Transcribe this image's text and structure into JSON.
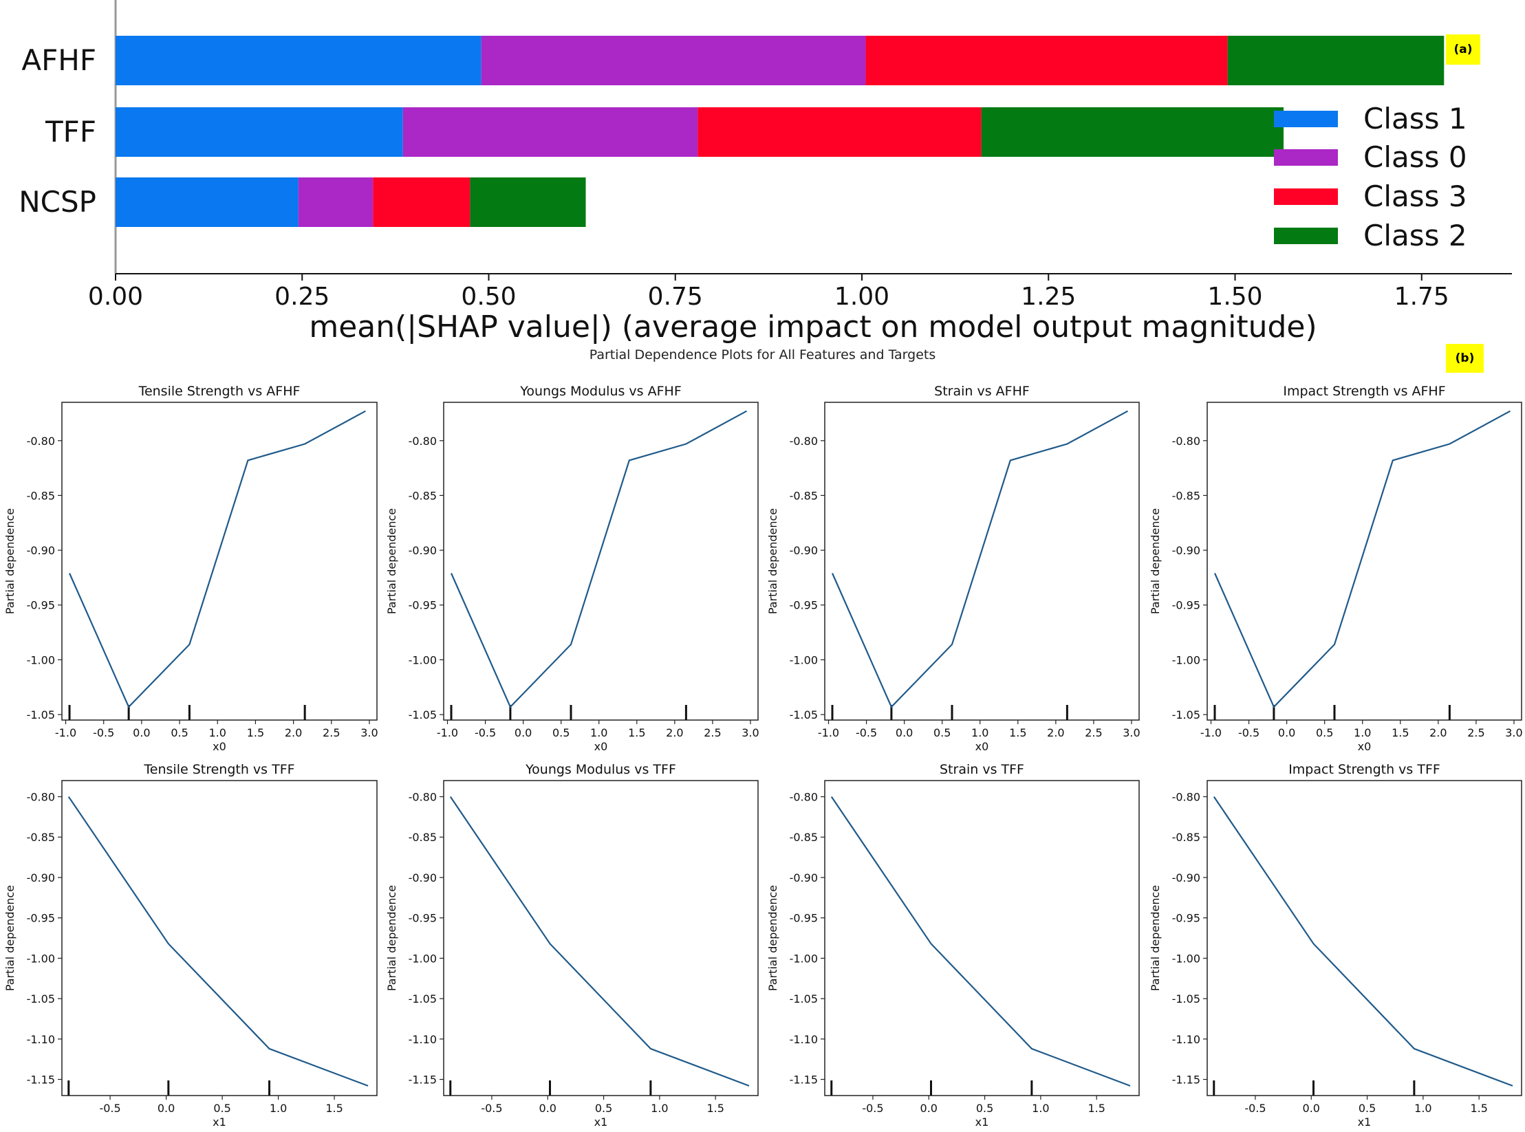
{
  "chart_data": [
    {
      "type": "bar",
      "stacked": true,
      "orientation": "horizontal",
      "panel_label": "(a)",
      "categories": [
        "AFHF",
        "TFF",
        "NCSP"
      ],
      "series": [
        {
          "name": "Class 1",
          "color": "#0a78f0",
          "values": [
            0.49,
            0.385,
            0.245
          ]
        },
        {
          "name": "Class 0",
          "color": "#ab27c6",
          "values": [
            0.515,
            0.395,
            0.1
          ]
        },
        {
          "name": "Class 3",
          "color": "#ff0026",
          "values": [
            0.485,
            0.38,
            0.13
          ]
        },
        {
          "name": "Class 2",
          "color": "#047a13",
          "values": [
            0.29,
            0.405,
            0.155
          ]
        }
      ],
      "legend": [
        "Class 1",
        "Class 0",
        "Class 3",
        "Class 2"
      ],
      "legend_position": "right",
      "xlabel": "mean(|SHAP value|) (average impact on model output magnitude)",
      "xlim": [
        0,
        1.85
      ],
      "xticks": [
        "0.00",
        "0.25",
        "0.50",
        "0.75",
        "1.00",
        "1.25",
        "1.50",
        "1.75"
      ]
    },
    {
      "type": "line",
      "panel_label": "(b)",
      "title": "Partial Dependence Plots for All Features and Targets",
      "line_color": "#1f5a8a",
      "ylabel": "Partial dependence",
      "rows": [
        {
          "target": "AFHF",
          "xlabel": "x0",
          "titles": [
            "Tensile Strength vs AFHF",
            "Youngs Modulus vs AFHF",
            "Strain vs AFHF",
            "Impact Strength vs AFHF"
          ],
          "x": [
            -0.95,
            -0.17,
            0.63,
            1.4,
            2.15,
            2.95
          ],
          "y": [
            -0.921,
            -1.043,
            -0.986,
            -0.818,
            -0.803,
            -0.773
          ],
          "deciles": [
            -0.95,
            -0.17,
            0.63,
            2.15
          ],
          "xlim": [
            -1.05,
            3.1
          ],
          "ylim": [
            -1.055,
            -0.765
          ],
          "xticks": [
            "-1.0",
            "-0.5",
            "0.0",
            "0.5",
            "1.0",
            "1.5",
            "2.0",
            "2.5",
            "3.0"
          ],
          "yticks": [
            "-0.80",
            "-0.85",
            "-0.90",
            "-0.95",
            "-1.00",
            "-1.05"
          ]
        },
        {
          "target": "TFF",
          "xlabel": "x1",
          "titles": [
            "Tensile Strength vs TFF",
            "Youngs Modulus vs TFF",
            "Strain vs TFF",
            "Impact Strength vs TFF"
          ],
          "x": [
            -0.87,
            0.02,
            0.92,
            1.8
          ],
          "y": [
            -0.8,
            -0.982,
            -1.112,
            -1.158
          ],
          "deciles": [
            -0.87,
            0.02,
            0.92
          ],
          "xlim": [
            -0.93,
            1.88
          ],
          "ylim": [
            -1.17,
            -0.78
          ],
          "xticks": [
            "-0.5",
            "0.0",
            "0.5",
            "1.0",
            "1.5"
          ],
          "yticks": [
            "-0.80",
            "-0.85",
            "-0.90",
            "-0.95",
            "-1.00",
            "-1.05",
            "-1.10",
            "-1.15"
          ]
        }
      ]
    }
  ]
}
